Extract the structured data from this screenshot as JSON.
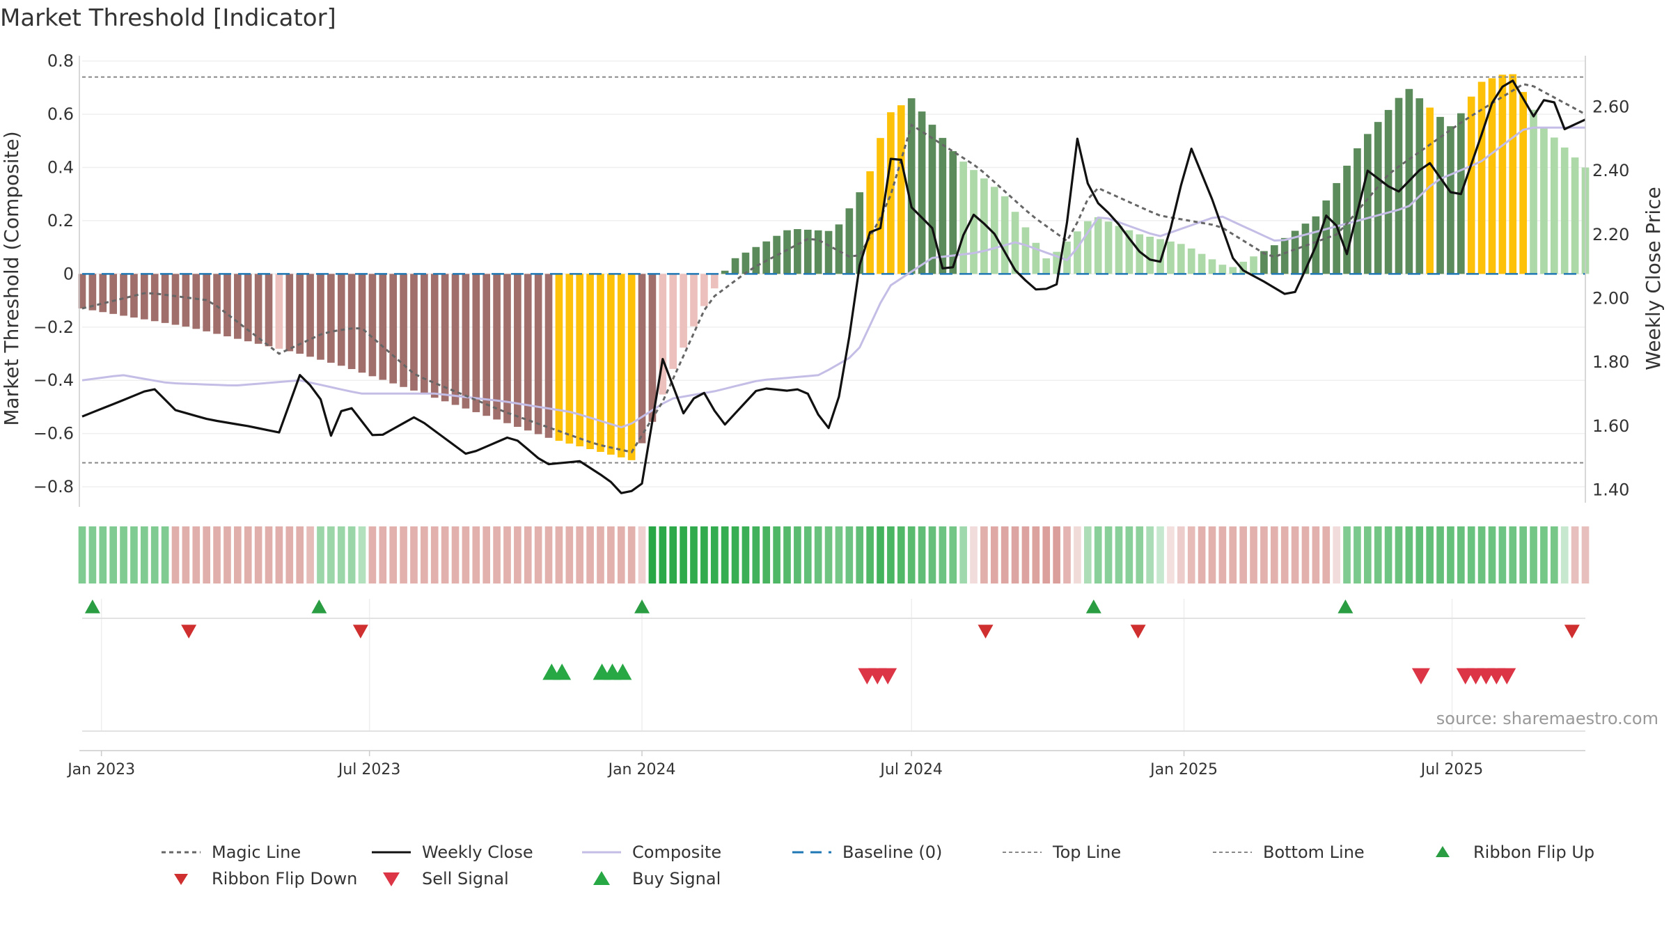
{
  "chart_data": {
    "type": "bar+line",
    "title": "Market Threshold [Indicator]",
    "source": "source: sharemaestro.com",
    "y_left": {
      "label": "Market Threshold (Composite)",
      "lim": [
        -0.86,
        0.82
      ],
      "ticks": [
        {
          "v": 0.8,
          "t": "0.8"
        },
        {
          "v": 0.6,
          "t": "0.6"
        },
        {
          "v": 0.4,
          "t": "0.4"
        },
        {
          "v": 0.2,
          "t": "0.2"
        },
        {
          "v": 0,
          "t": "0"
        },
        {
          "v": -0.2,
          "t": "−0.2"
        },
        {
          "v": -0.4,
          "t": "−0.4"
        },
        {
          "v": -0.6,
          "t": "−0.6"
        },
        {
          "v": -0.8,
          "t": "−0.8"
        }
      ]
    },
    "y_right": {
      "label": "Weekly Close Price",
      "lim": [
        1.36,
        2.76
      ],
      "ticks": [
        {
          "v": 2.6,
          "t": "2.60"
        },
        {
          "v": 2.4,
          "t": "2.40"
        },
        {
          "v": 2.2,
          "t": "2.20"
        },
        {
          "v": 2.0,
          "t": "2.00"
        },
        {
          "v": 1.8,
          "t": "1.80"
        },
        {
          "v": 1.6,
          "t": "1.60"
        },
        {
          "v": 1.4,
          "t": "1.40"
        }
      ]
    },
    "x": {
      "start": "2022-12-19",
      "end": "2025-09-29",
      "ticks": [
        {
          "date": "2023-01-01",
          "label": "Jan 2023"
        },
        {
          "date": "2023-07-01",
          "label": "Jul 2023"
        },
        {
          "date": "2024-01-01",
          "label": "Jan 2024"
        },
        {
          "date": "2024-07-01",
          "label": "Jul 2024"
        },
        {
          "date": "2025-01-01",
          "label": "Jan 2025"
        },
        {
          "date": "2025-07-01",
          "label": "Jul 2025"
        }
      ]
    },
    "top_line": 0.74,
    "bottom_line": -0.71,
    "baseline": 0,
    "composite_keyframes": [
      [
        "2022-12-19",
        -0.13
      ],
      [
        "2023-03-01",
        -0.2
      ],
      [
        "2023-05-15",
        -0.3
      ],
      [
        "2023-06-15",
        -0.35
      ],
      [
        "2023-09-01",
        -0.5
      ],
      [
        "2023-11-01",
        -0.62
      ],
      [
        "2023-12-25",
        -0.7
      ],
      [
        "2024-01-05",
        -0.6
      ],
      [
        "2024-01-20",
        -0.38
      ],
      [
        "2024-02-10",
        -0.14
      ],
      [
        "2024-03-01",
        0.05
      ],
      [
        "2024-04-10",
        0.17
      ],
      [
        "2024-05-10",
        0.16
      ],
      [
        "2024-06-01",
        0.35
      ],
      [
        "2024-06-15",
        0.6
      ],
      [
        "2024-07-01",
        0.66
      ],
      [
        "2024-08-01",
        0.44
      ],
      [
        "2024-09-01",
        0.3
      ],
      [
        "2024-10-01",
        0.05
      ],
      [
        "2024-11-01",
        0.22
      ],
      [
        "2024-12-01",
        0.15
      ],
      [
        "2025-01-01",
        0.11
      ],
      [
        "2025-02-01",
        0.02
      ],
      [
        "2025-03-01",
        0.1
      ],
      [
        "2025-04-01",
        0.22
      ],
      [
        "2025-05-01",
        0.5
      ],
      [
        "2025-06-01",
        0.7
      ],
      [
        "2025-07-01",
        0.55
      ],
      [
        "2025-07-20",
        0.72
      ],
      [
        "2025-08-10",
        0.76
      ],
      [
        "2025-09-01",
        0.55
      ],
      [
        "2025-09-29",
        0.4
      ]
    ],
    "magic_keyframes": [
      [
        "2022-12-19",
        -0.13
      ],
      [
        "2023-02-01",
        -0.07
      ],
      [
        "2023-03-15",
        -0.1
      ],
      [
        "2023-05-01",
        -0.3
      ],
      [
        "2023-06-01",
        -0.22
      ],
      [
        "2023-06-25",
        -0.2
      ],
      [
        "2023-08-01",
        -0.38
      ],
      [
        "2023-10-01",
        -0.52
      ],
      [
        "2023-12-01",
        -0.64
      ],
      [
        "2023-12-25",
        -0.67
      ],
      [
        "2024-01-15",
        -0.48
      ],
      [
        "2024-02-15",
        -0.1
      ],
      [
        "2024-03-15",
        0.02
      ],
      [
        "2024-04-25",
        0.14
      ],
      [
        "2024-05-25",
        0.05
      ],
      [
        "2024-06-15",
        0.26
      ],
      [
        "2024-07-01",
        0.56
      ],
      [
        "2024-08-15",
        0.4
      ],
      [
        "2024-09-20",
        0.22
      ],
      [
        "2024-10-15",
        0.12
      ],
      [
        "2024-11-01",
        0.33
      ],
      [
        "2024-12-15",
        0.22
      ],
      [
        "2025-01-25",
        0.18
      ],
      [
        "2025-03-01",
        0.06
      ],
      [
        "2025-04-15",
        0.15
      ],
      [
        "2025-05-20",
        0.38
      ],
      [
        "2025-07-10",
        0.58
      ],
      [
        "2025-08-20",
        0.72
      ],
      [
        "2025-09-29",
        0.6
      ]
    ],
    "composite_line_keyframes": [
      [
        "2022-12-19",
        -0.4
      ],
      [
        "2023-01-15",
        -0.38
      ],
      [
        "2023-02-15",
        -0.41
      ],
      [
        "2023-04-01",
        -0.42
      ],
      [
        "2023-05-15",
        -0.4
      ],
      [
        "2023-06-25",
        -0.45
      ],
      [
        "2023-08-15",
        -0.45
      ],
      [
        "2023-10-01",
        -0.48
      ],
      [
        "2023-11-15",
        -0.52
      ],
      [
        "2023-12-20",
        -0.58
      ],
      [
        "2024-01-20",
        -0.47
      ],
      [
        "2024-02-20",
        -0.44
      ],
      [
        "2024-03-20",
        -0.4
      ],
      [
        "2024-04-30",
        -0.38
      ],
      [
        "2024-05-25",
        -0.3
      ],
      [
        "2024-06-15",
        -0.05
      ],
      [
        "2024-07-15",
        0.06
      ],
      [
        "2024-08-15",
        0.08
      ],
      [
        "2024-09-10",
        0.12
      ],
      [
        "2024-10-15",
        0.05
      ],
      [
        "2024-11-05",
        0.22
      ],
      [
        "2024-12-15",
        0.14
      ],
      [
        "2025-01-25",
        0.22
      ],
      [
        "2025-03-05",
        0.12
      ],
      [
        "2025-04-15",
        0.18
      ],
      [
        "2025-06-01",
        0.25
      ],
      [
        "2025-06-20",
        0.35
      ],
      [
        "2025-07-20",
        0.42
      ],
      [
        "2025-08-20",
        0.55
      ],
      [
        "2025-09-29",
        0.55
      ]
    ],
    "weekly_close_keyframes": [
      [
        "2022-12-19",
        1.63
      ],
      [
        "2023-01-15",
        1.68
      ],
      [
        "2023-02-05",
        1.72
      ],
      [
        "2023-02-20",
        1.65
      ],
      [
        "2023-03-15",
        1.62
      ],
      [
        "2023-04-10",
        1.6
      ],
      [
        "2023-05-01",
        1.58
      ],
      [
        "2023-05-15",
        1.76
      ],
      [
        "2023-05-28",
        1.7
      ],
      [
        "2023-06-05",
        1.57
      ],
      [
        "2023-06-15",
        1.68
      ],
      [
        "2023-07-05",
        1.56
      ],
      [
        "2023-08-01",
        1.63
      ],
      [
        "2023-09-05",
        1.51
      ],
      [
        "2023-10-05",
        1.57
      ],
      [
        "2023-10-28",
        1.48
      ],
      [
        "2023-11-20",
        1.49
      ],
      [
        "2023-12-10",
        1.43
      ],
      [
        "2023-12-20",
        1.38
      ],
      [
        "2024-01-01",
        1.42
      ],
      [
        "2024-01-15",
        1.81
      ],
      [
        "2024-01-29",
        1.64
      ],
      [
        "2024-02-10",
        1.72
      ],
      [
        "2024-02-25",
        1.6
      ],
      [
        "2024-03-20",
        1.72
      ],
      [
        "2024-04-10",
        1.71
      ],
      [
        "2024-04-20",
        1.72
      ],
      [
        "2024-05-05",
        1.58
      ],
      [
        "2024-05-15",
        1.72
      ],
      [
        "2024-05-30",
        2.2
      ],
      [
        "2024-06-10",
        2.22
      ],
      [
        "2024-06-20",
        2.53
      ],
      [
        "2024-06-30",
        2.29
      ],
      [
        "2024-07-15",
        2.22
      ],
      [
        "2024-07-25",
        2.04
      ],
      [
        "2024-08-10",
        2.27
      ],
      [
        "2024-08-25",
        2.21
      ],
      [
        "2024-09-10",
        2.08
      ],
      [
        "2024-09-25",
        2.02
      ],
      [
        "2024-10-10",
        2.05
      ],
      [
        "2024-10-20",
        2.52
      ],
      [
        "2024-10-30",
        2.32
      ],
      [
        "2024-11-15",
        2.25
      ],
      [
        "2024-12-01",
        2.15
      ],
      [
        "2024-12-15",
        2.1
      ],
      [
        "2024-12-25",
        2.25
      ],
      [
        "2025-01-05",
        2.48
      ],
      [
        "2025-01-20",
        2.31
      ],
      [
        "2025-02-05",
        2.1
      ],
      [
        "2025-02-25",
        2.05
      ],
      [
        "2025-03-15",
        2.0
      ],
      [
        "2025-03-30",
        2.15
      ],
      [
        "2025-04-10",
        2.3
      ],
      [
        "2025-04-20",
        2.12
      ],
      [
        "2025-05-05",
        2.4
      ],
      [
        "2025-05-25",
        2.33
      ],
      [
        "2025-06-15",
        2.43
      ],
      [
        "2025-07-05",
        2.3
      ],
      [
        "2025-07-20",
        2.5
      ],
      [
        "2025-07-30",
        2.64
      ],
      [
        "2025-08-10",
        2.69
      ],
      [
        "2025-08-25",
        2.57
      ],
      [
        "2025-09-05",
        2.65
      ],
      [
        "2025-09-15",
        2.53
      ],
      [
        "2025-09-29",
        2.56
      ]
    ],
    "yellow_ranges": [
      [
        "2023-11-01",
        "2023-12-31"
      ],
      [
        "2024-06-01",
        "2024-06-25"
      ],
      [
        "2025-06-10",
        "2025-06-16"
      ],
      [
        "2025-07-10",
        "2025-08-20"
      ]
    ],
    "palette": {
      "dark_green": "#5b8b5b",
      "light_green": "#add8a8",
      "dark_red": "#a16f6b",
      "light_red": "#ecc1bd",
      "yellow": "#fcc108",
      "buy": "#28a745",
      "sell": "#dc3545",
      "flip_up": "#2a9d43",
      "flip_down": "#cf2f2f",
      "composite_line": "#c4bde6",
      "magic": "#666666",
      "close": "#111111",
      "baseline": "#1f77b4",
      "ref": "#888888"
    },
    "ribbon_keyframes": [
      [
        "2022-12-19",
        0.5
      ],
      [
        "2023-02-14",
        0.5
      ],
      [
        "2023-02-20",
        -0.5
      ],
      [
        "2023-05-21",
        -0.5
      ],
      [
        "2023-05-28",
        0.35
      ],
      [
        "2023-06-25",
        0.35
      ],
      [
        "2023-07-01",
        -0.48
      ],
      [
        "2023-12-31",
        -0.48
      ],
      [
        "2024-01-05",
        1.0
      ],
      [
        "2024-03-10",
        0.9
      ],
      [
        "2024-05-15",
        0.55
      ],
      [
        "2024-06-10",
        0.85
      ],
      [
        "2024-08-01",
        0.55
      ],
      [
        "2024-08-20",
        -0.55
      ],
      [
        "2024-10-10",
        -0.65
      ],
      [
        "2024-11-01",
        0.45
      ],
      [
        "2024-12-01",
        0.45
      ],
      [
        "2025-01-10",
        -0.48
      ],
      [
        "2025-04-10",
        -0.48
      ],
      [
        "2025-04-20",
        0.5
      ],
      [
        "2025-06-10",
        0.68
      ],
      [
        "2025-09-10",
        0.55
      ],
      [
        "2025-09-20",
        -0.35
      ],
      [
        "2025-09-29",
        -0.35
      ]
    ],
    "ribbon_flip_up": [
      "2022-12-26",
      "2023-05-28",
      "2024-01-01",
      "2024-11-01",
      "2025-04-20"
    ],
    "ribbon_flip_down": [
      "2023-03-01",
      "2023-06-25",
      "2024-08-20",
      "2024-12-01",
      "2025-09-20"
    ],
    "buy_signals": [
      "2023-11-01",
      "2023-11-08",
      "2023-12-05",
      "2023-12-12",
      "2023-12-19"
    ],
    "sell_signals": [
      "2024-06-01",
      "2024-06-08",
      "2024-06-15",
      "2025-06-10",
      "2025-07-10",
      "2025-07-17",
      "2025-07-24",
      "2025-07-31",
      "2025-08-07"
    ],
    "legend": [
      "Magic Line",
      "Weekly Close",
      "Composite",
      "Baseline (0)",
      "Top Line",
      "Bottom Line",
      "Ribbon Flip Up",
      "Ribbon Flip Down",
      "Sell Signal",
      "Buy Signal"
    ]
  }
}
